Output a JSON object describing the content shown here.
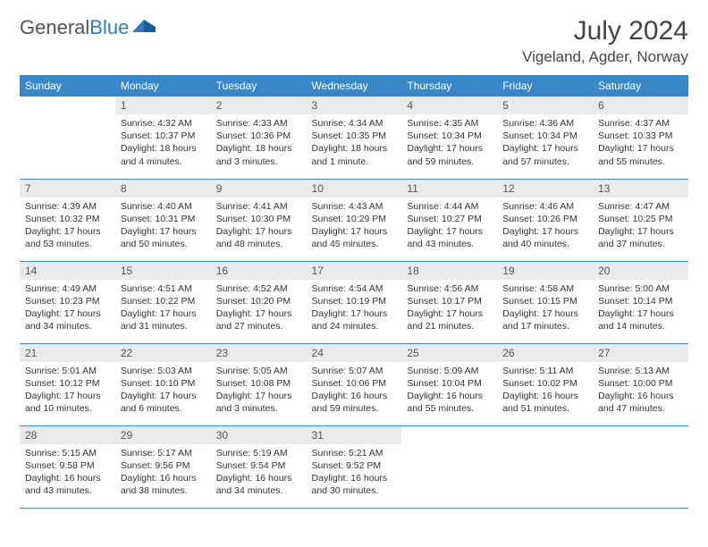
{
  "brand": {
    "part1": "General",
    "part2": "Blue"
  },
  "title": "July 2024",
  "location": "Vigeland, Agder, Norway",
  "colors": {
    "header_bg": "#3a87c8",
    "header_text": "#ffffff",
    "daynum_bg": "#e9eaeb",
    "row_border": "#3a87c8",
    "brand_blue": "#2f7bbf"
  },
  "weekdays": [
    "Sunday",
    "Monday",
    "Tuesday",
    "Wednesday",
    "Thursday",
    "Friday",
    "Saturday"
  ],
  "weeks": [
    [
      null,
      {
        "n": "1",
        "sr": "4:32 AM",
        "ss": "10:37 PM",
        "dl": "18 hours and 4 minutes."
      },
      {
        "n": "2",
        "sr": "4:33 AM",
        "ss": "10:36 PM",
        "dl": "18 hours and 3 minutes."
      },
      {
        "n": "3",
        "sr": "4:34 AM",
        "ss": "10:35 PM",
        "dl": "18 hours and 1 minute."
      },
      {
        "n": "4",
        "sr": "4:35 AM",
        "ss": "10:34 PM",
        "dl": "17 hours and 59 minutes."
      },
      {
        "n": "5",
        "sr": "4:36 AM",
        "ss": "10:34 PM",
        "dl": "17 hours and 57 minutes."
      },
      {
        "n": "6",
        "sr": "4:37 AM",
        "ss": "10:33 PM",
        "dl": "17 hours and 55 minutes."
      }
    ],
    [
      {
        "n": "7",
        "sr": "4:39 AM",
        "ss": "10:32 PM",
        "dl": "17 hours and 53 minutes."
      },
      {
        "n": "8",
        "sr": "4:40 AM",
        "ss": "10:31 PM",
        "dl": "17 hours and 50 minutes."
      },
      {
        "n": "9",
        "sr": "4:41 AM",
        "ss": "10:30 PM",
        "dl": "17 hours and 48 minutes."
      },
      {
        "n": "10",
        "sr": "4:43 AM",
        "ss": "10:29 PM",
        "dl": "17 hours and 45 minutes."
      },
      {
        "n": "11",
        "sr": "4:44 AM",
        "ss": "10:27 PM",
        "dl": "17 hours and 43 minutes."
      },
      {
        "n": "12",
        "sr": "4:46 AM",
        "ss": "10:26 PM",
        "dl": "17 hours and 40 minutes."
      },
      {
        "n": "13",
        "sr": "4:47 AM",
        "ss": "10:25 PM",
        "dl": "17 hours and 37 minutes."
      }
    ],
    [
      {
        "n": "14",
        "sr": "4:49 AM",
        "ss": "10:23 PM",
        "dl": "17 hours and 34 minutes."
      },
      {
        "n": "15",
        "sr": "4:51 AM",
        "ss": "10:22 PM",
        "dl": "17 hours and 31 minutes."
      },
      {
        "n": "16",
        "sr": "4:52 AM",
        "ss": "10:20 PM",
        "dl": "17 hours and 27 minutes."
      },
      {
        "n": "17",
        "sr": "4:54 AM",
        "ss": "10:19 PM",
        "dl": "17 hours and 24 minutes."
      },
      {
        "n": "18",
        "sr": "4:56 AM",
        "ss": "10:17 PM",
        "dl": "17 hours and 21 minutes."
      },
      {
        "n": "19",
        "sr": "4:58 AM",
        "ss": "10:15 PM",
        "dl": "17 hours and 17 minutes."
      },
      {
        "n": "20",
        "sr": "5:00 AM",
        "ss": "10:14 PM",
        "dl": "17 hours and 14 minutes."
      }
    ],
    [
      {
        "n": "21",
        "sr": "5:01 AM",
        "ss": "10:12 PM",
        "dl": "17 hours and 10 minutes."
      },
      {
        "n": "22",
        "sr": "5:03 AM",
        "ss": "10:10 PM",
        "dl": "17 hours and 6 minutes."
      },
      {
        "n": "23",
        "sr": "5:05 AM",
        "ss": "10:08 PM",
        "dl": "17 hours and 3 minutes."
      },
      {
        "n": "24",
        "sr": "5:07 AM",
        "ss": "10:06 PM",
        "dl": "16 hours and 59 minutes."
      },
      {
        "n": "25",
        "sr": "5:09 AM",
        "ss": "10:04 PM",
        "dl": "16 hours and 55 minutes."
      },
      {
        "n": "26",
        "sr": "5:11 AM",
        "ss": "10:02 PM",
        "dl": "16 hours and 51 minutes."
      },
      {
        "n": "27",
        "sr": "5:13 AM",
        "ss": "10:00 PM",
        "dl": "16 hours and 47 minutes."
      }
    ],
    [
      {
        "n": "28",
        "sr": "5:15 AM",
        "ss": "9:58 PM",
        "dl": "16 hours and 43 minutes."
      },
      {
        "n": "29",
        "sr": "5:17 AM",
        "ss": "9:56 PM",
        "dl": "16 hours and 38 minutes."
      },
      {
        "n": "30",
        "sr": "5:19 AM",
        "ss": "9:54 PM",
        "dl": "16 hours and 34 minutes."
      },
      {
        "n": "31",
        "sr": "5:21 AM",
        "ss": "9:52 PM",
        "dl": "16 hours and 30 minutes."
      },
      null,
      null,
      null
    ]
  ],
  "labels": {
    "sunrise": "Sunrise:",
    "sunset": "Sunset:",
    "daylight": "Daylight:"
  }
}
